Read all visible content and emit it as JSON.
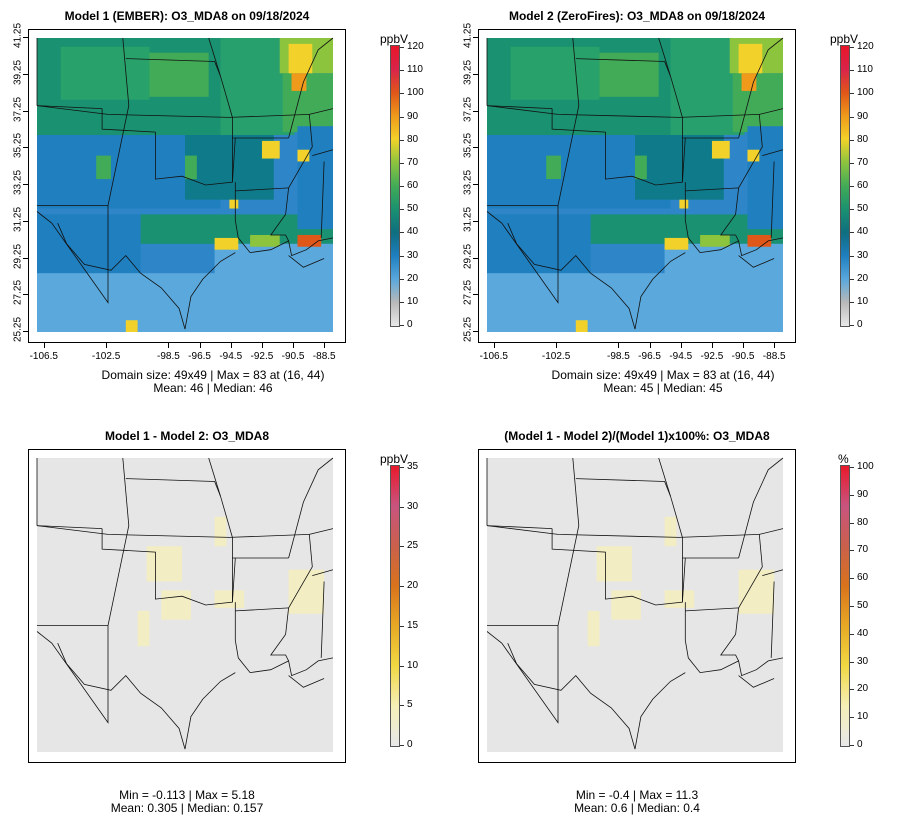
{
  "panels": [
    {
      "title": "Model 1 (EMBER): O3_MDA8 on 09/18/2024",
      "stats_line1": "Domain size: 49x49 | Max = 83 at (16, 44)",
      "stats_line2": "Mean: 46 |  Median: 46",
      "unit": "ppbV",
      "scale_labels": [
        "120",
        "110",
        "100",
        "90",
        "80",
        "70",
        "60",
        "50",
        "40",
        "30",
        "20",
        "10",
        "0"
      ],
      "scale_type": "ozone",
      "show_axes": true
    },
    {
      "title": "Model 2 (ZeroFires): O3_MDA8 on 09/18/2024",
      "stats_line1": "Domain size: 49x49 | Max = 83 at (16, 44)",
      "stats_line2": "Mean: 45 |  Median: 45",
      "unit": "ppbV",
      "scale_labels": [
        "120",
        "110",
        "100",
        "90",
        "80",
        "70",
        "60",
        "50",
        "40",
        "30",
        "20",
        "10",
        "0"
      ],
      "scale_type": "ozone",
      "show_axes": true
    },
    {
      "title": "Model 1 - Model 2: O3_MDA8",
      "stats_line1": "Min = -0.113 | Max = 5.18",
      "stats_line2": "Mean: 0.305 |  Median: 0.157",
      "unit": "ppbV",
      "scale_labels": [
        "35",
        "30",
        "25",
        "20",
        "15",
        "10",
        "5",
        "0"
      ],
      "scale_type": "diff",
      "show_axes": false
    },
    {
      "title": "(Model 1 - Model 2)/(Model 1)x100%: O3_MDA8",
      "stats_line1": "Min = -0.4 | Max = 11.3",
      "stats_line2": "Mean: 0.6 |  Median: 0.4",
      "unit": "%",
      "scale_labels": [
        "100",
        "90",
        "80",
        "70",
        "60",
        "50",
        "40",
        "30",
        "20",
        "10",
        "0"
      ],
      "scale_type": "diff",
      "show_axes": false
    }
  ],
  "axes": {
    "y_ticks": [
      "41.25",
      "39.25",
      "37.25",
      "35.25",
      "33.25",
      "31.25",
      "29.25",
      "27.25",
      "25.25"
    ],
    "x_ticks": [
      "-106.5",
      "-102.5",
      "-98.5",
      "-96.5",
      "-94.5",
      "-92.5",
      "-90.5",
      "-88.5"
    ]
  },
  "colors": {
    "ozone_scale": [
      "#e8e8e8",
      "#b9b9b9",
      "#5aa8dc",
      "#1f7fbf",
      "#0f6e80",
      "#1a9170",
      "#42ab57",
      "#8cc43e",
      "#f2d22a",
      "#ef9a1b",
      "#e0571a",
      "#d9234a",
      "#e8152a"
    ],
    "diff_scale": [
      "#e8e8e8",
      "#f5efb8",
      "#f1d843",
      "#e7a925",
      "#d9731c",
      "#c9604c",
      "#c8547f",
      "#e8192c"
    ],
    "map_background_diff": "#e6e6e6"
  }
}
